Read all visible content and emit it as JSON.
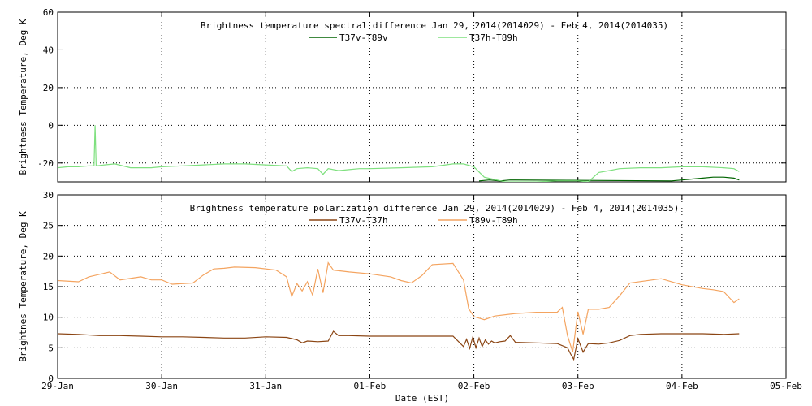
{
  "page": {
    "background": "#ffffff"
  },
  "x_axis": {
    "label": "Date (EST)",
    "ticks": [
      "29-Jan",
      "30-Jan",
      "31-Jan",
      "01-Feb",
      "02-Feb",
      "03-Feb",
      "04-Feb",
      "05-Feb"
    ],
    "range": [
      0,
      7
    ]
  },
  "chart_data": [
    {
      "type": "line",
      "title": "Brightness temperature spectral difference     Jan 29, 2014(2014029) - Feb  4, 2014(2014035)",
      "ylabel": "Brightness Temperature, Deg K",
      "ylim": [
        -30,
        60
      ],
      "yticks": [
        -20,
        0,
        20,
        40,
        60
      ],
      "grid": true,
      "legend_position": "top-center",
      "series": [
        {
          "name": "T37v-T89v",
          "color": "#006400",
          "x": [
            4.05,
            4.15,
            4.25,
            4.35,
            5.9,
            6.0,
            6.1,
            6.2,
            6.3,
            6.4,
            6.5,
            6.55
          ],
          "y": [
            -29.5,
            -29,
            -29.5,
            -29,
            -29.5,
            -29,
            -28.5,
            -28,
            -27.5,
            -27.5,
            -28,
            -29
          ]
        },
        {
          "name": "T37h-T89h",
          "color": "#7fe07f",
          "x": [
            0.0,
            0.1,
            0.2,
            0.3,
            0.35,
            0.36,
            0.37,
            0.45,
            0.55,
            0.7,
            0.9,
            1.0,
            1.2,
            1.4,
            1.6,
            1.8,
            2.0,
            2.2,
            2.25,
            2.3,
            2.4,
            2.5,
            2.55,
            2.6,
            2.7,
            2.8,
            2.9,
            3.0,
            3.3,
            3.6,
            3.8,
            3.9,
            4.0,
            4.1,
            4.3,
            4.6,
            4.8,
            5.0,
            5.1,
            5.2,
            5.3,
            5.4,
            5.6,
            5.8,
            6.0,
            6.2,
            6.4,
            6.5,
            6.55
          ],
          "y": [
            -22.5,
            -22,
            -22,
            -21.5,
            -21.5,
            0,
            -21.5,
            -21,
            -20.5,
            -22.5,
            -22.5,
            -22,
            -21.5,
            -21,
            -20.5,
            -20.5,
            -21,
            -21.5,
            -24.5,
            -23,
            -22.5,
            -23,
            -26,
            -23,
            -24,
            -23.5,
            -23,
            -23,
            -22.5,
            -22,
            -20.5,
            -20.5,
            -22,
            -27.5,
            -30,
            -30,
            -29.5,
            -29.5,
            -30,
            -25,
            -24,
            -23,
            -22.5,
            -22.5,
            -22,
            -22,
            -22.5,
            -23,
            -24.5
          ]
        }
      ]
    },
    {
      "type": "line",
      "title": "Brightness temperature polarization difference     Jan 29, 2014(2014029) - Feb  4, 2014(2014035)",
      "ylabel": "Brightnes Temperature, Deg K",
      "ylim": [
        0,
        30
      ],
      "yticks": [
        0,
        5,
        10,
        15,
        20,
        25,
        30
      ],
      "grid": true,
      "legend_position": "top-center",
      "series": [
        {
          "name": "T37v-T37h",
          "color": "#8b4513",
          "x": [
            0.0,
            0.2,
            0.4,
            0.6,
            0.8,
            1.0,
            1.2,
            1.4,
            1.6,
            1.8,
            2.0,
            2.2,
            2.3,
            2.35,
            2.4,
            2.5,
            2.6,
            2.65,
            2.7,
            2.8,
            3.0,
            3.2,
            3.4,
            3.6,
            3.8,
            3.9,
            3.93,
            3.96,
            3.99,
            4.02,
            4.05,
            4.08,
            4.11,
            4.14,
            4.17,
            4.2,
            4.25,
            4.3,
            4.35,
            4.4,
            4.6,
            4.8,
            4.9,
            4.93,
            4.96,
            5.0,
            5.05,
            5.1,
            5.2,
            5.3,
            5.4,
            5.5,
            5.6,
            5.8,
            6.0,
            6.2,
            6.4,
            6.55
          ],
          "y": [
            7.3,
            7.2,
            7.0,
            7.0,
            6.9,
            6.8,
            6.8,
            6.7,
            6.6,
            6.6,
            6.8,
            6.7,
            6.3,
            5.8,
            6.1,
            6.0,
            6.1,
            7.7,
            7.0,
            7.0,
            6.9,
            6.9,
            6.9,
            6.9,
            6.9,
            5.2,
            6.4,
            4.9,
            6.8,
            5.0,
            6.6,
            5.2,
            6.3,
            5.6,
            6.1,
            5.8,
            6.0,
            6.1,
            7.0,
            5.9,
            5.8,
            5.7,
            5.0,
            4.0,
            3.1,
            6.5,
            4.3,
            5.7,
            5.6,
            5.8,
            6.2,
            7.0,
            7.2,
            7.3,
            7.3,
            7.3,
            7.2,
            7.3
          ]
        },
        {
          "name": "T89v-T89h",
          "color": "#f4a460",
          "x": [
            0.0,
            0.2,
            0.3,
            0.5,
            0.6,
            0.8,
            0.9,
            1.0,
            1.1,
            1.3,
            1.4,
            1.5,
            1.6,
            1.7,
            1.9,
            2.1,
            2.2,
            2.25,
            2.3,
            2.35,
            2.4,
            2.45,
            2.5,
            2.55,
            2.6,
            2.65,
            2.7,
            2.8,
            3.0,
            3.2,
            3.3,
            3.4,
            3.5,
            3.6,
            3.8,
            3.9,
            3.95,
            4.0,
            4.1,
            4.2,
            4.4,
            4.6,
            4.8,
            4.85,
            4.9,
            4.95,
            5.0,
            5.05,
            5.1,
            5.2,
            5.3,
            5.4,
            5.5,
            5.8,
            6.0,
            6.2,
            6.3,
            6.4,
            6.5,
            6.55
          ],
          "y": [
            16.0,
            15.8,
            16.6,
            17.4,
            16.1,
            16.6,
            16.1,
            16.1,
            15.4,
            15.6,
            16.9,
            17.9,
            18.0,
            18.2,
            18.1,
            17.7,
            16.6,
            13.4,
            15.5,
            14.3,
            15.8,
            13.6,
            17.9,
            14.0,
            18.9,
            17.7,
            17.6,
            17.4,
            17.1,
            16.6,
            16.0,
            15.6,
            16.8,
            18.6,
            18.8,
            16.1,
            11.4,
            10.1,
            9.6,
            10.2,
            10.6,
            10.8,
            10.8,
            11.6,
            7.0,
            4.3,
            10.9,
            7.2,
            11.3,
            11.3,
            11.6,
            13.5,
            15.6,
            16.3,
            15.3,
            14.7,
            14.5,
            14.2,
            12.4,
            13.0
          ]
        }
      ]
    }
  ]
}
